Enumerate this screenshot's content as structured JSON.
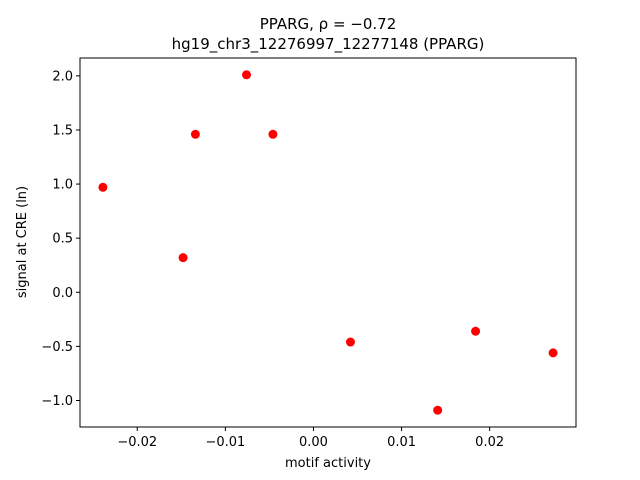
{
  "chart_data": {
    "type": "scatter",
    "title_line1": "PPARG, ρ = −0.72",
    "title_line2": "hg19_chr3_12276997_12277148 (PPARG)",
    "xlabel": "motif activity",
    "ylabel": "signal at CRE (ln)",
    "xlim": [
      -0.0265,
      0.0298
    ],
    "ylim": [
      -1.245,
      2.165
    ],
    "xticks": [
      -0.02,
      -0.01,
      0.0,
      0.01,
      0.02
    ],
    "xtick_labels": [
      "−0.02",
      "−0.01",
      "0.00",
      "0.01",
      "0.02"
    ],
    "yticks": [
      -1.0,
      -0.5,
      0.0,
      0.5,
      1.0,
      1.5,
      2.0
    ],
    "ytick_labels": [
      "−1.0",
      "−0.5",
      "0.0",
      "0.5",
      "1.0",
      "1.5",
      "2.0"
    ],
    "grid": false,
    "point_color": "#ff0000",
    "points": [
      {
        "x": -0.0239,
        "y": 0.97
      },
      {
        "x": -0.0148,
        "y": 0.32
      },
      {
        "x": -0.0134,
        "y": 1.46
      },
      {
        "x": -0.0076,
        "y": 2.01
      },
      {
        "x": -0.0046,
        "y": 1.46
      },
      {
        "x": 0.0042,
        "y": -0.46
      },
      {
        "x": 0.0141,
        "y": -1.09
      },
      {
        "x": 0.0184,
        "y": -0.36
      },
      {
        "x": 0.0272,
        "y": -0.56
      }
    ]
  }
}
